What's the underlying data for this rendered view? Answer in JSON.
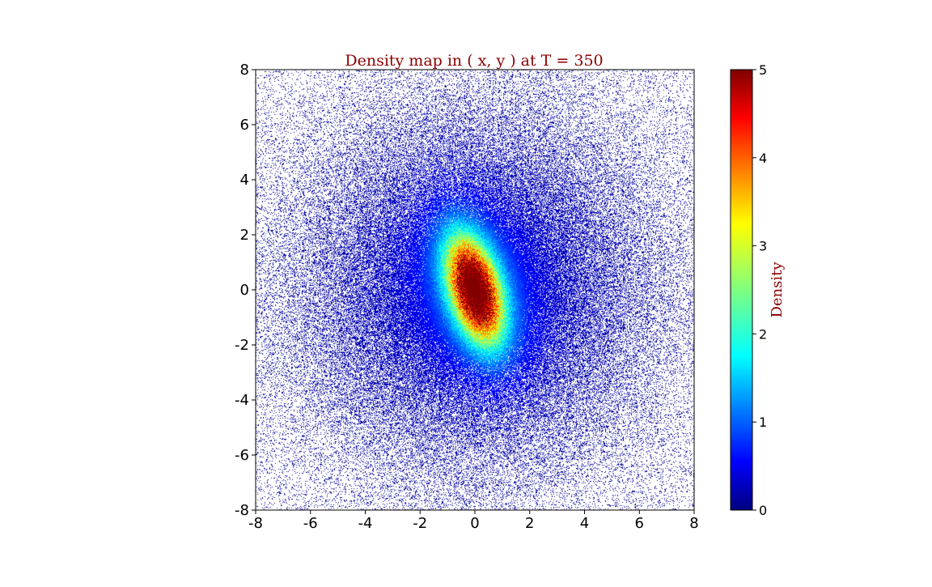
{
  "chart_data": {
    "type": "heatmap",
    "title": "Density map in ( x, y ) at T = 350",
    "xlabel": "",
    "ylabel": "",
    "xlim": [
      -8,
      8
    ],
    "ylim": [
      -8,
      8
    ],
    "x_ticks": [
      "-8",
      "-6",
      "-4",
      "-2",
      "0",
      "2",
      "4",
      "6",
      "8"
    ],
    "y_ticks": [
      "8",
      "6",
      "4",
      "2",
      "0",
      "-2",
      "-4",
      "-6",
      "-8"
    ],
    "colorbar": {
      "label": "Density",
      "range": [
        0,
        5
      ],
      "ticks": [
        "0",
        "1",
        "2",
        "3",
        "4",
        "5"
      ],
      "colormap": "jet",
      "colormap_stops": [
        "#00007f",
        "#0000ff",
        "#00ffff",
        "#ffff00",
        "#ff0000",
        "#7f0000"
      ]
    },
    "density_model": {
      "peak": 5,
      "peak_center": [
        0,
        0
      ],
      "core_orientation": "ellipse elongated along y, tilted slightly toward +x at top",
      "background": "#ffffff",
      "grid": false
    }
  }
}
